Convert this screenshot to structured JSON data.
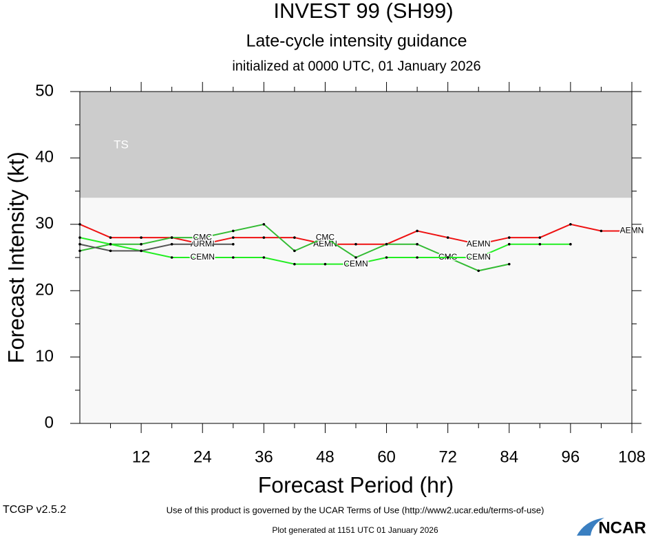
{
  "chart_data": {
    "type": "line",
    "title": "INVEST 99 (SH99)",
    "subtitle": "Late-cycle intensity guidance",
    "initialized": "initialized at 0000 UTC, 01 January 2026",
    "x_label": "Forecast Period (hr)",
    "y_label": "Forecast Intensity (kt)",
    "x": [
      0,
      6,
      12,
      18,
      24,
      30,
      36,
      42,
      48,
      54,
      60,
      66,
      72,
      78,
      84,
      90,
      96,
      102,
      108
    ],
    "xlim": [
      0,
      108
    ],
    "xticks": [
      12,
      24,
      36,
      48,
      60,
      72,
      84,
      96,
      108
    ],
    "ylim": [
      0,
      50
    ],
    "yticks": [
      0,
      10,
      20,
      30,
      40,
      50
    ],
    "bands": [
      {
        "label": "TS",
        "from": 34,
        "to": 50,
        "color": "#cccccc"
      }
    ],
    "series": [
      {
        "name": "AEMN",
        "color": "#ee1111",
        "values": [
          30,
          28,
          28,
          28,
          27,
          28,
          28,
          28,
          27,
          27,
          27,
          29,
          28,
          27,
          28,
          28,
          30,
          29,
          29
        ]
      },
      {
        "name": "CMC",
        "color": "#33bb33",
        "values": [
          26,
          27,
          27,
          28,
          28,
          29,
          30,
          26,
          28,
          25,
          27,
          27,
          25,
          23,
          24,
          null,
          null,
          null,
          null
        ]
      },
      {
        "name": "CEMN",
        "color": "#22ee22",
        "values": [
          28,
          27,
          26,
          25,
          25,
          25,
          25,
          24,
          24,
          24,
          25,
          25,
          25,
          25,
          27,
          27,
          27,
          null,
          null
        ]
      },
      {
        "name": "URM",
        "color": "#555555",
        "values": [
          27,
          26,
          26,
          27,
          27,
          27,
          null,
          null,
          null,
          null,
          null,
          null,
          null,
          null,
          null,
          null,
          null,
          null,
          null
        ]
      }
    ],
    "footer": {
      "version": "TCGP v2.5.2",
      "terms": "Use of this product is governed by the UCAR Terms of Use (http://www2.ucar.edu/terms-of-use)",
      "generated": "Plot generated at 1151 UTC   01 January 2026",
      "logo": "NCAR"
    }
  }
}
